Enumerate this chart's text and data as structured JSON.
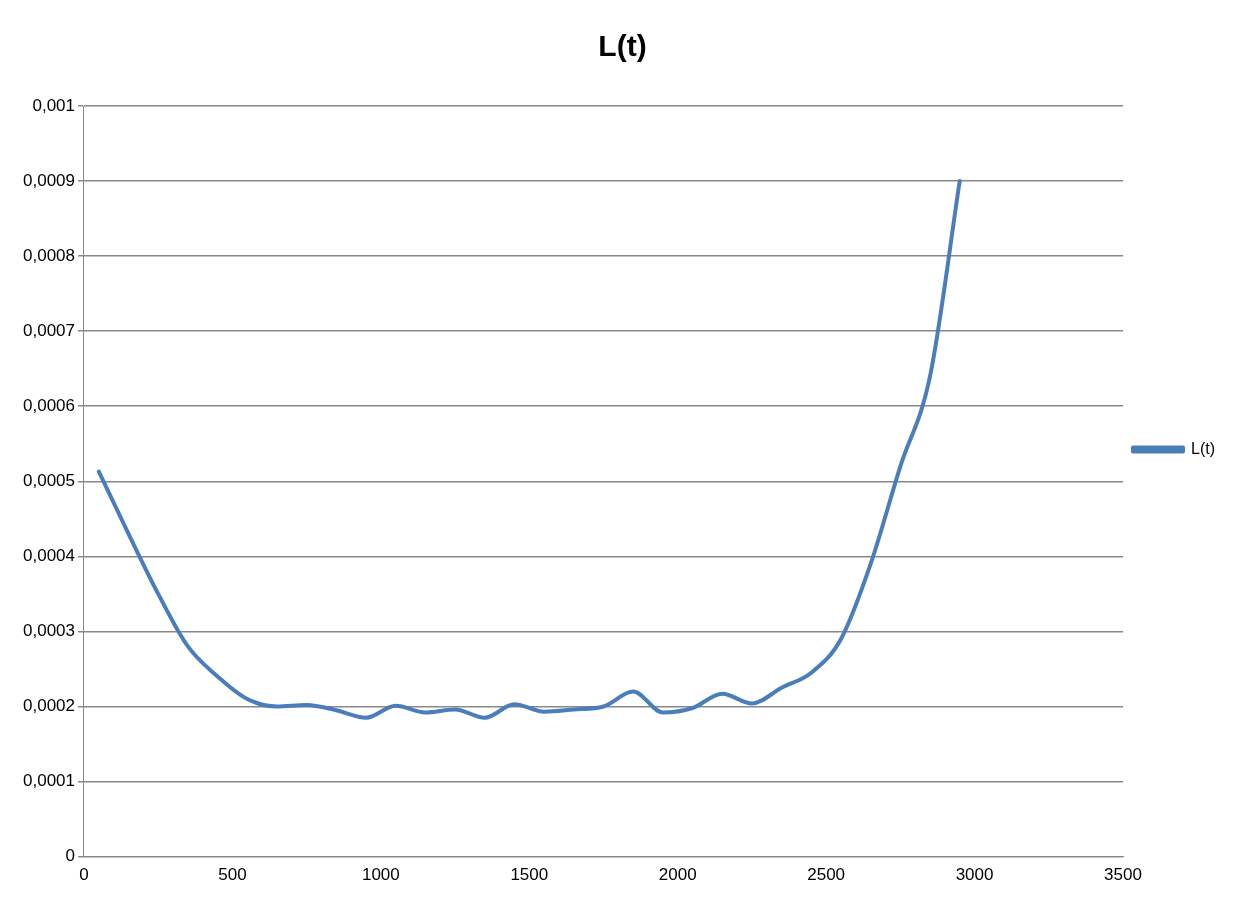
{
  "chart_data": {
    "type": "line",
    "title": "L(t)",
    "x": [
      50,
      150,
      250,
      350,
      450,
      550,
      650,
      750,
      850,
      950,
      1050,
      1150,
      1250,
      1350,
      1450,
      1550,
      1650,
      1750,
      1850,
      1950,
      2050,
      2150,
      2250,
      2350,
      2450,
      2550,
      2650,
      2750,
      2850,
      2950
    ],
    "series": [
      {
        "name": "L(t)",
        "color": "#4a7ebb",
        "values": [
          0.000513,
          0.00043,
          0.00035,
          0.00028,
          0.00024,
          0.00021,
          0.0002,
          0.000202,
          0.000195,
          0.000185,
          0.000201,
          0.000192,
          0.000196,
          0.000185,
          0.000203,
          0.000193,
          0.000196,
          0.0002,
          0.00022,
          0.000192,
          0.000198,
          0.000217,
          0.000204,
          0.000225,
          0.000245,
          0.00029,
          0.00039,
          0.00052,
          0.00064,
          0.0009
        ]
      }
    ],
    "xlim": [
      0,
      3500
    ],
    "xticks": [
      0,
      500,
      1000,
      1500,
      2000,
      2500,
      3000,
      3500
    ],
    "ylim": [
      0,
      0.001
    ],
    "yticks": [
      {
        "value": 0,
        "label": "0"
      },
      {
        "value": 0.0001,
        "label": "0,0001"
      },
      {
        "value": 0.0002,
        "label": "0,0002"
      },
      {
        "value": 0.0003,
        "label": "0,0003"
      },
      {
        "value": 0.0004,
        "label": "0,0004"
      },
      {
        "value": 0.0005,
        "label": "0,0005"
      },
      {
        "value": 0.0006,
        "label": "0,0006"
      },
      {
        "value": 0.0007,
        "label": "0,0007"
      },
      {
        "value": 0.0008,
        "label": "0,0008"
      },
      {
        "value": 0.0009,
        "label": "0,0009"
      },
      {
        "value": 0.001,
        "label": "0,001"
      }
    ],
    "grid": "y",
    "legend": "right",
    "marker": "none",
    "line_style": "solid"
  }
}
